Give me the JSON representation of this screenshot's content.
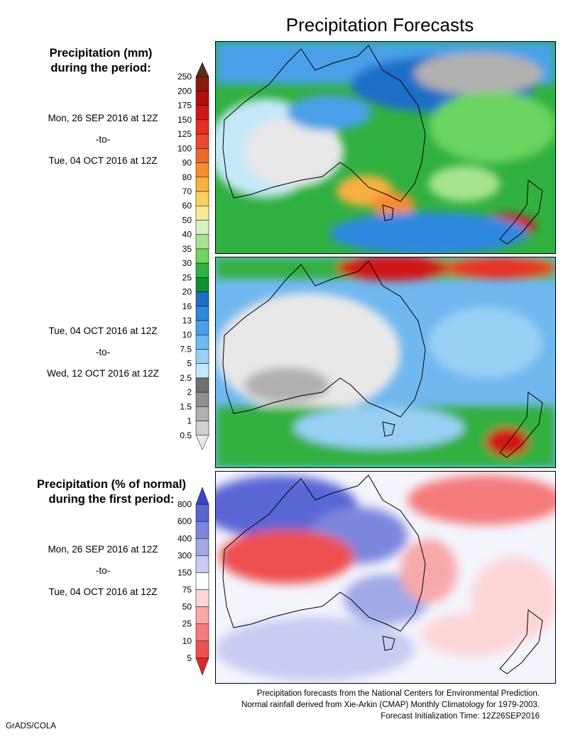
{
  "title": "Precipitation Forecasts",
  "legend_mm": {
    "heading_line1": "Precipitation (mm)",
    "heading_line2": "during the period:",
    "ticks": [
      "250",
      "200",
      "175",
      "150",
      "125",
      "100",
      "90",
      "80",
      "70",
      "60",
      "50",
      "40",
      "35",
      "30",
      "25",
      "20",
      "16",
      "13",
      "10",
      "7.5",
      "5",
      "2.5",
      "2",
      "1.5",
      "1",
      "0.5"
    ],
    "colors": [
      "#5a2a1e",
      "#8b1a10",
      "#b01010",
      "#d01818",
      "#e83020",
      "#f04830",
      "#f06828",
      "#f58c30",
      "#f8b040",
      "#fad060",
      "#fde898",
      "#d8f0c0",
      "#a8e490",
      "#6cd460",
      "#30b040",
      "#109030",
      "#1e6ec8",
      "#2e88e0",
      "#4aa0e8",
      "#70b8f0",
      "#98d0f4",
      "#c4e8f8",
      "#707070",
      "#909090",
      "#b0b0b0",
      "#d0d0d0",
      "#e8e8e8"
    ]
  },
  "legend_pct": {
    "heading_line1": "Precipitation (% of normal)",
    "heading_line2": "during the first period:",
    "ticks": [
      "800",
      "600",
      "400",
      "300",
      "150",
      "75",
      "50",
      "25",
      "10",
      "5"
    ],
    "colors": [
      "#3a46c8",
      "#5a66d4",
      "#7c86dc",
      "#a0a8e6",
      "#c8ccf2",
      "#ffffff",
      "#fcd6d6",
      "#f8a8a8",
      "#f47c7c",
      "#ee5050",
      "#e02828"
    ]
  },
  "periods": [
    {
      "start": "Mon, 26 SEP 2016 at 12Z",
      "sep": "-to-",
      "end": "Tue, 04 OCT 2016 at 12Z"
    },
    {
      "start": "Tue, 04 OCT 2016 at 12Z",
      "sep": "-to-",
      "end": "Wed, 12 OCT 2016 at 12Z"
    },
    {
      "start": "Mon, 26 SEP 2016 at 12Z",
      "sep": "-to-",
      "end": "Tue, 04 OCT 2016 at 12Z"
    }
  ],
  "maps": [
    {
      "region": "Australia / New Zealand",
      "variable": "precipitation (mm)",
      "period_index": 0
    },
    {
      "region": "Australia / New Zealand",
      "variable": "precipitation (mm)",
      "period_index": 1
    },
    {
      "region": "Australia / New Zealand",
      "variable": "precipitation (% of normal)",
      "period_index": 2
    }
  ],
  "footer": {
    "line1": "Precipitation forecasts from the National Centers for Environmental Prediction.",
    "line2": "Normal rainfall derived from Xie-Arkin (CMAP) Monthly Climatology for 1979-2003.",
    "line3": "Forecast Initialization Time: 12Z26SEP2016"
  },
  "credit": "GrADS/COLA"
}
